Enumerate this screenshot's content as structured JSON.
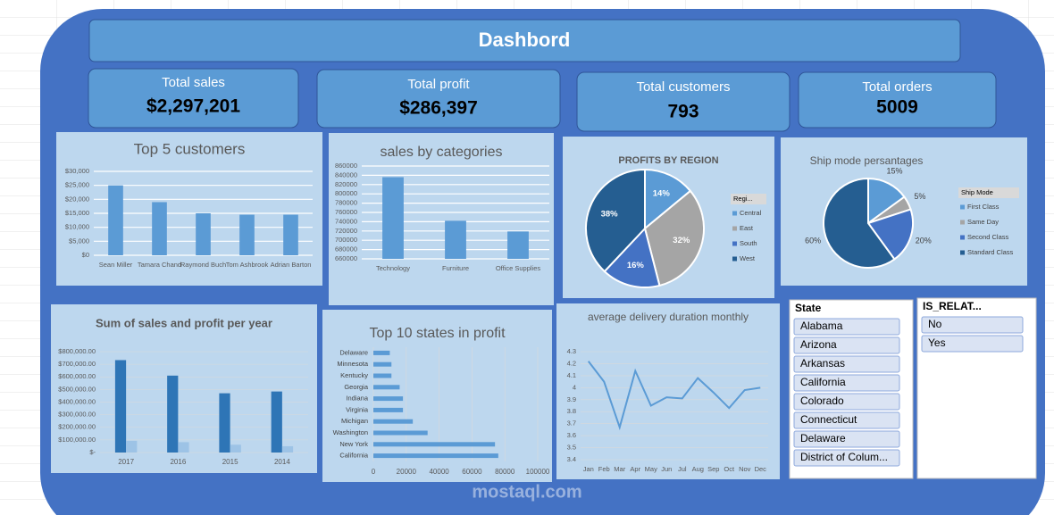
{
  "title": "Dashbord",
  "kpis": [
    {
      "label": "Total sales",
      "value": "$2,297,201"
    },
    {
      "label": "Total profit",
      "value": "$286,397"
    },
    {
      "label": "Total customers",
      "value": "793"
    },
    {
      "label": "Total orders",
      "value": "5009"
    }
  ],
  "chart_data": [
    {
      "type": "bar",
      "title": "Top 5 customers",
      "categories": [
        "Sean Miller",
        "Tamara Chand",
        "Raymond Buch",
        "Tom Ashbrook",
        "Adrian Barton"
      ],
      "values": [
        25000,
        19000,
        15000,
        14500,
        14500
      ],
      "color": "#5b9bd5",
      "ylim": [
        0,
        30000
      ],
      "yticks": [
        {
          "value": 0,
          "label": "$0"
        },
        {
          "value": 5000,
          "label": "$5,000"
        },
        {
          "value": 10000,
          "label": "$10,000"
        },
        {
          "value": 15000,
          "label": "$15,000"
        },
        {
          "value": 20000,
          "label": "$20,000"
        },
        {
          "value": 25000,
          "label": "$25,000"
        },
        {
          "value": 30000,
          "label": "$30,000"
        }
      ],
      "grid": true
    },
    {
      "type": "bar",
      "title": "sales by categories",
      "categories": [
        "Technology",
        "Furniture",
        "Office Supplies"
      ],
      "values": [
        836000,
        742000,
        719000
      ],
      "color": "#5b9bd5",
      "ylim": [
        660000,
        860000
      ],
      "yticks": [
        660000,
        680000,
        700000,
        720000,
        740000,
        760000,
        780000,
        800000,
        820000,
        840000,
        860000
      ],
      "grid": true
    },
    {
      "type": "pie",
      "title": "PROFITS BY REGION",
      "legend_title": "Regi...",
      "categories": [
        "Central",
        "East",
        "South",
        "West"
      ],
      "values": [
        14,
        32,
        16,
        38
      ],
      "value_labels": [
        "14%",
        "32%",
        "16%",
        "38%"
      ],
      "colors": [
        "#5b9bd5",
        "#a5a5a5",
        "#4472c4",
        "#255e91"
      ]
    },
    {
      "type": "pie",
      "title": "Ship mode persantages",
      "legend_title": "Ship Mode",
      "categories": [
        "First Class",
        "Same Day",
        "Second Class",
        "Standard Class"
      ],
      "values": [
        15,
        5,
        20,
        60
      ],
      "value_labels": [
        "15%",
        "5%",
        "20%",
        "60%"
      ],
      "colors": [
        "#5b9bd5",
        "#a5a5a5",
        "#4472c4",
        "#255e91"
      ],
      "labels_outside": true
    },
    {
      "type": "grouped-bar",
      "title": "Sum of sales and profit per year",
      "categories": [
        "2017",
        "2016",
        "2015",
        "2014"
      ],
      "series": [
        {
          "color": "#2e75b6",
          "values": [
            733000,
            610000,
            470000,
            484000
          ]
        },
        {
          "color": "#9dc3e6",
          "values": [
            93000,
            82000,
            62000,
            50000
          ]
        }
      ],
      "ylim": [
        0,
        800000
      ],
      "yticks": [
        {
          "value": 0,
          "label": "$-"
        },
        {
          "value": 100000,
          "label": "$100,000.00"
        },
        {
          "value": 200000,
          "label": "$200,000.00"
        },
        {
          "value": 300000,
          "label": "$300,000.00"
        },
        {
          "value": 400000,
          "label": "$400,000.00"
        },
        {
          "value": 500000,
          "label": "$500,000.00"
        },
        {
          "value": 600000,
          "label": "$600,000.00"
        },
        {
          "value": 700000,
          "label": "$700,000.00"
        },
        {
          "value": 800000,
          "label": "$800,000.00"
        }
      ]
    },
    {
      "type": "hbar",
      "title": "Top 10 states in profit",
      "categories": [
        "Delaware",
        "Minnesota",
        "Kentucky",
        "Georgia",
        "Indiana",
        "Virginia",
        "Michigan",
        "Washington",
        "New York",
        "California"
      ],
      "values": [
        10000,
        11000,
        11000,
        16000,
        18000,
        18000,
        24000,
        33000,
        74000,
        76000
      ],
      "color": "#5b9bd5",
      "xlim": [
        0,
        100000
      ],
      "xticks": [
        0,
        20000,
        40000,
        60000,
        80000,
        100000
      ]
    },
    {
      "type": "line",
      "title": "average delivery duration monthly",
      "categories": [
        "Jan",
        "Feb",
        "Mar",
        "Apr",
        "May",
        "Jun",
        "Jul",
        "Aug",
        "Sep",
        "Oct",
        "Nov",
        "Dec"
      ],
      "values": [
        4.22,
        4.05,
        3.67,
        4.14,
        3.85,
        3.92,
        3.91,
        4.08,
        3.96,
        3.83,
        3.98,
        4.0
      ],
      "color": "#5b9bd5",
      "ylim": [
        3.4,
        4.3
      ],
      "yticks": [
        3.4,
        3.5,
        3.6,
        3.7,
        3.8,
        3.9,
        4,
        4.1,
        4.2,
        4.3
      ]
    }
  ],
  "slicers": [
    {
      "title": "State",
      "items": [
        "Alabama",
        "Arizona",
        "Arkansas",
        "California",
        "Colorado",
        "Connecticut",
        "Delaware",
        "District of Colum..."
      ]
    },
    {
      "title": "IS_RELAT...",
      "items": [
        "No",
        "Yes"
      ]
    }
  ],
  "watermark": "mostaql.com"
}
